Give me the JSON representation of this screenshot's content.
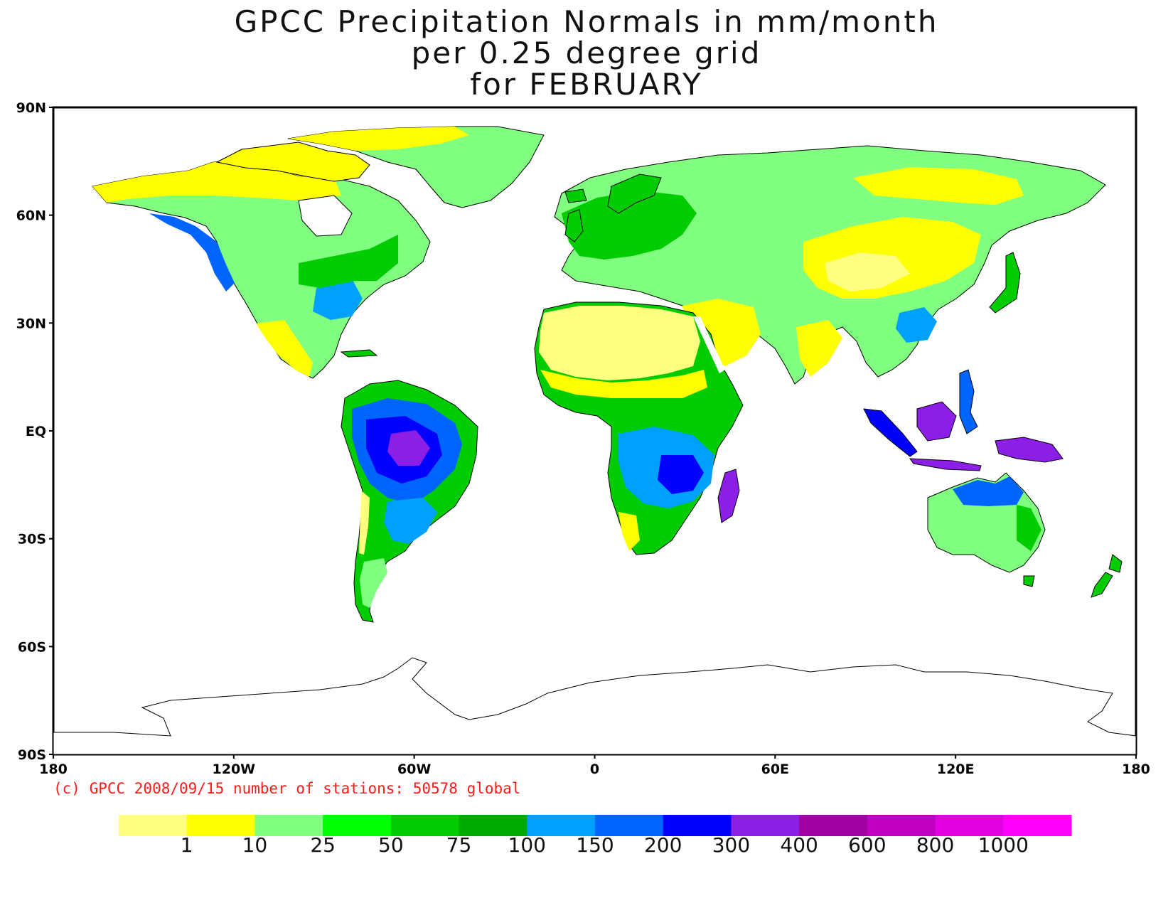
{
  "title": {
    "line1": "GPCC Precipitation Normals in mm/month",
    "line2": "per 0.25 degree grid",
    "line3": "for FEBRUARY"
  },
  "axes": {
    "y_labels": [
      "90N",
      "60N",
      "30N",
      "EQ",
      "30S",
      "60S",
      "90S"
    ],
    "x_labels": [
      "180",
      "120W",
      "60W",
      "0",
      "60E",
      "120E",
      "180"
    ]
  },
  "footer": {
    "copyright": "(c) GPCC 2008/09/15 number of stations: 50578 global"
  },
  "colorbar": {
    "colors": [
      "#ffff80",
      "#ffff00",
      "#80ff80",
      "#00ff00",
      "#00cc00",
      "#00aa00",
      "#00a0ff",
      "#0064ff",
      "#0000ff",
      "#8c1ee6",
      "#a000a0",
      "#c000c0",
      "#e000e0",
      "#ff00ff"
    ],
    "labels": [
      "1",
      "10",
      "25",
      "50",
      "75",
      "100",
      "150",
      "200",
      "300",
      "400",
      "600",
      "800",
      "1000"
    ]
  },
  "palette": {
    "very_dry": "#ffff80",
    "dry": "#ffff00",
    "light": "#80ff80",
    "moderate": "#00ff00",
    "wet": "#00cc00",
    "wetter": "#00aa00",
    "very_wet": "#00a0ff",
    "heavy": "#0064ff",
    "extreme": "#0000ff",
    "peak": "#8c1ee6"
  }
}
